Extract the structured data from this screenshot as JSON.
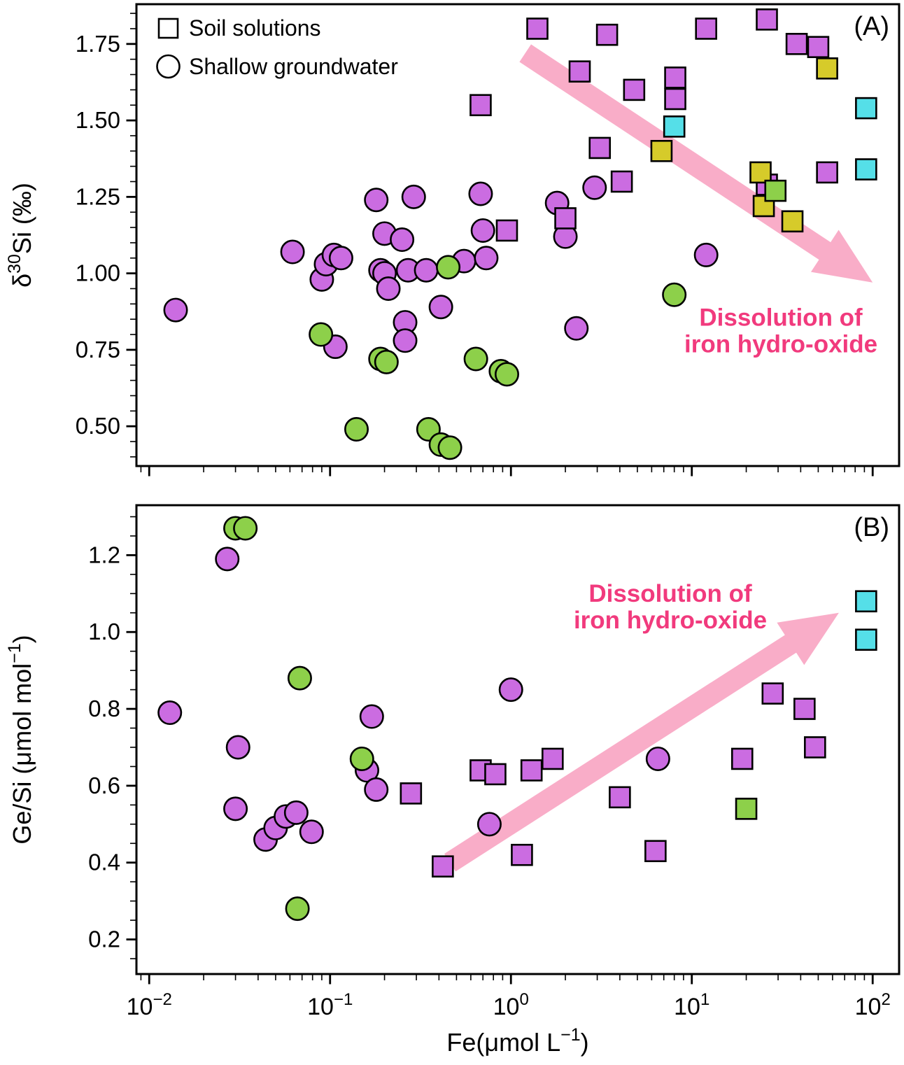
{
  "figure": {
    "legend": {
      "items": [
        {
          "marker": "square",
          "label": "Soil solutions"
        },
        {
          "marker": "circle",
          "label": "Shallow groundwater"
        }
      ]
    },
    "annotation_text": [
      "Dissolution of",
      "iron hydro-oxide"
    ],
    "panel_labels": [
      "(A)",
      "(B)"
    ]
  },
  "chart_data": {
    "type": "scatter",
    "x_scale": "log",
    "xlabel_parts": {
      "pre": "Fe(μmol L",
      "sup": "−1",
      "post": ")"
    },
    "xlim": [
      0.0085,
      140
    ],
    "x_ticks": [
      {
        "value": 0.01,
        "base": "10",
        "exp": "−2"
      },
      {
        "value": 0.1,
        "base": "10",
        "exp": "−1"
      },
      {
        "value": 1,
        "base": "10",
        "exp": "0"
      },
      {
        "value": 10,
        "base": "10",
        "exp": "1"
      },
      {
        "value": 100,
        "base": "10",
        "exp": "2"
      }
    ],
    "grid": false,
    "legend_position": "upper left of panel A",
    "colors": {
      "purple": "#cb6ce1",
      "green": "#8dd04a",
      "yellow": "#d6cb2a",
      "cyan": "#55dfe8",
      "marker_outline": "#000000",
      "arrow": "#f9adc8",
      "annotation": "#f13a7d",
      "axis": "#000000",
      "background": "#ffffff"
    },
    "panels": [
      {
        "id": "A",
        "label": "(A)",
        "ylabel_parts": {
          "pre": "δ",
          "sup": "30",
          "post": "Si (‰)"
        },
        "ylim": [
          0.37,
          1.88
        ],
        "y_ticks": [
          {
            "value": 0.5,
            "label": "0.50"
          },
          {
            "value": 0.75,
            "label": "0.75"
          },
          {
            "value": 1.0,
            "label": "1.00"
          },
          {
            "value": 1.25,
            "label": "1.25"
          },
          {
            "value": 1.5,
            "label": "1.50"
          },
          {
            "value": 1.75,
            "label": "1.75"
          }
        ],
        "y_minor_step": 0.05,
        "show_x_tick_labels": false,
        "show_legend": true,
        "annotation": {
          "lines": [
            "Dissolution of",
            "iron hydro-oxide"
          ],
          "fx": 0.845,
          "fy": 0.705
        },
        "arrow": {
          "x1": 1.2,
          "y1": 1.72,
          "x2": 100,
          "y2": 0.97
        },
        "series": [
          {
            "name": "shallow-groundwater-purple",
            "group": "Shallow groundwater",
            "marker": "circle",
            "color": "purple",
            "points": [
              [
                0.014,
                0.88
              ],
              [
                0.062,
                1.07
              ],
              [
                0.09,
                0.98
              ],
              [
                0.095,
                1.03
              ],
              [
                0.105,
                1.06
              ],
              [
                0.115,
                1.05
              ],
              [
                0.107,
                0.76
              ],
              [
                0.18,
                1.24
              ],
              [
                0.19,
                1.01
              ],
              [
                0.2,
                1.0
              ],
              [
                0.2,
                1.13
              ],
              [
                0.21,
                0.95
              ],
              [
                0.25,
                1.11
              ],
              [
                0.29,
                1.25
              ],
              [
                0.26,
                0.84
              ],
              [
                0.26,
                0.78
              ],
              [
                0.27,
                1.01
              ],
              [
                0.34,
                1.01
              ],
              [
                0.41,
                0.89
              ],
              [
                0.55,
                1.04
              ],
              [
                0.68,
                1.26
              ],
              [
                0.7,
                1.14
              ],
              [
                0.73,
                1.05
              ],
              [
                1.8,
                1.23
              ],
              [
                2.0,
                1.12
              ],
              [
                2.3,
                0.82
              ],
              [
                2.9,
                1.28
              ],
              [
                12,
                1.06
              ]
            ]
          },
          {
            "name": "shallow-groundwater-green",
            "group": "Shallow groundwater",
            "marker": "circle",
            "color": "green",
            "points": [
              [
                0.089,
                0.8
              ],
              [
                0.14,
                0.49
              ],
              [
                0.19,
                0.72
              ],
              [
                0.205,
                0.71
              ],
              [
                0.35,
                0.49
              ],
              [
                0.41,
                0.44
              ],
              [
                0.46,
                0.43
              ],
              [
                0.45,
                1.02
              ],
              [
                0.64,
                0.72
              ],
              [
                0.88,
                0.68
              ],
              [
                0.95,
                0.67
              ],
              [
                8.0,
                0.93
              ]
            ]
          },
          {
            "name": "soil-solutions-purple",
            "group": "Soil solutions",
            "marker": "square",
            "color": "purple",
            "points": [
              [
                0.68,
                1.55
              ],
              [
                0.95,
                1.14
              ],
              [
                1.4,
                1.8
              ],
              [
                2.0,
                1.18
              ],
              [
                2.4,
                1.66
              ],
              [
                3.1,
                1.41
              ],
              [
                3.4,
                1.78
              ],
              [
                4.1,
                1.3
              ],
              [
                4.8,
                1.6
              ],
              [
                8.1,
                1.64
              ],
              [
                8.1,
                1.57
              ],
              [
                12,
                1.8
              ],
              [
                26,
                1.83
              ],
              [
                26,
                1.29
              ],
              [
                38,
                1.75
              ],
              [
                50,
                1.74
              ],
              [
                56,
                1.33
              ]
            ]
          },
          {
            "name": "soil-solutions-yellow",
            "group": "Soil solutions",
            "marker": "square",
            "color": "yellow",
            "points": [
              [
                6.8,
                1.4
              ],
              [
                24,
                1.33
              ],
              [
                25,
                1.22
              ],
              [
                36,
                1.17
              ],
              [
                56,
                1.67
              ]
            ]
          },
          {
            "name": "soil-solutions-green",
            "group": "Soil solutions",
            "marker": "square",
            "color": "green",
            "points": [
              [
                29,
                1.27
              ]
            ]
          },
          {
            "name": "soil-solutions-cyan",
            "group": "Soil solutions",
            "marker": "square",
            "color": "cyan",
            "points": [
              [
                8.0,
                1.48
              ],
              [
                92,
                1.54
              ],
              [
                92,
                1.34
              ]
            ]
          }
        ]
      },
      {
        "id": "B",
        "label": "(B)",
        "ylabel_parts": {
          "pre": "Ge/Si (μmol mol",
          "sup": "−1",
          "post": ")"
        },
        "ylim": [
          0.11,
          1.33
        ],
        "y_ticks": [
          {
            "value": 0.2,
            "label": "0.2"
          },
          {
            "value": 0.4,
            "label": "0.4"
          },
          {
            "value": 0.6,
            "label": "0.6"
          },
          {
            "value": 0.8,
            "label": "0.8"
          },
          {
            "value": 1.0,
            "label": "1.0"
          },
          {
            "value": 1.2,
            "label": "1.2"
          }
        ],
        "y_minor_step": 0.05,
        "show_x_tick_labels": true,
        "show_legend": false,
        "annotation": {
          "lines": [
            "Dissolution of",
            "iron hydro-oxide"
          ],
          "fx": 0.7,
          "fy": 0.215
        },
        "arrow": {
          "x1": 0.46,
          "y1": 0.4,
          "x2": 65,
          "y2": 1.05
        },
        "series": [
          {
            "name": "shallow-groundwater-purple",
            "group": "Shallow groundwater",
            "marker": "circle",
            "color": "purple",
            "points": [
              [
                0.013,
                0.79
              ],
              [
                0.027,
                1.19
              ],
              [
                0.03,
                0.54
              ],
              [
                0.031,
                0.7
              ],
              [
                0.044,
                0.46
              ],
              [
                0.05,
                0.49
              ],
              [
                0.057,
                0.52
              ],
              [
                0.065,
                0.53
              ],
              [
                0.079,
                0.48
              ],
              [
                0.16,
                0.64
              ],
              [
                0.17,
                0.78
              ],
              [
                0.18,
                0.59
              ],
              [
                0.76,
                0.5
              ],
              [
                1.0,
                0.85
              ],
              [
                6.5,
                0.67
              ]
            ]
          },
          {
            "name": "shallow-groundwater-green",
            "group": "Shallow groundwater",
            "marker": "circle",
            "color": "green",
            "points": [
              [
                0.03,
                1.27
              ],
              [
                0.034,
                1.27
              ],
              [
                0.068,
                0.88
              ],
              [
                0.15,
                0.67
              ],
              [
                0.066,
                0.28
              ]
            ]
          },
          {
            "name": "soil-solutions-purple",
            "group": "Soil solutions",
            "marker": "square",
            "color": "purple",
            "points": [
              [
                0.28,
                0.58
              ],
              [
                0.42,
                0.39
              ],
              [
                0.68,
                0.64
              ],
              [
                0.82,
                0.63
              ],
              [
                1.15,
                0.42
              ],
              [
                1.3,
                0.64
              ],
              [
                1.7,
                0.67
              ],
              [
                4.0,
                0.57
              ],
              [
                6.3,
                0.43
              ],
              [
                19,
                0.67
              ],
              [
                28,
                0.84
              ],
              [
                42,
                0.8
              ],
              [
                48,
                0.7
              ]
            ]
          },
          {
            "name": "soil-solutions-green",
            "group": "Soil solutions",
            "marker": "square",
            "color": "green",
            "points": [
              [
                20,
                0.54
              ]
            ]
          },
          {
            "name": "soil-solutions-cyan",
            "group": "Soil solutions",
            "marker": "square",
            "color": "cyan",
            "points": [
              [
                92,
                1.08
              ],
              [
                92,
                0.98
              ]
            ]
          }
        ]
      }
    ]
  }
}
